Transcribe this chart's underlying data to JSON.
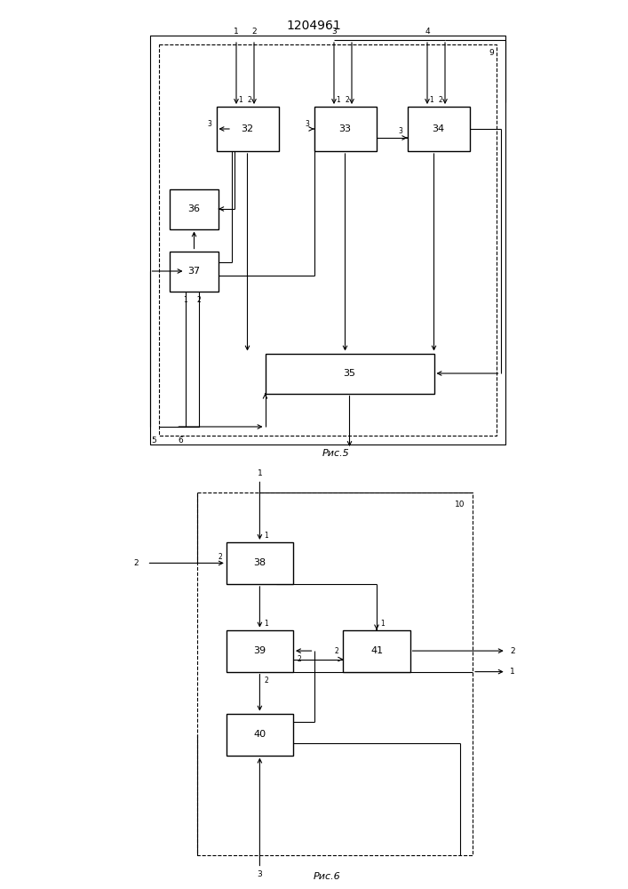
{
  "title": "1204961",
  "fig5_label": "Рис.5",
  "fig6_label": "Рис.6",
  "bg_color": "#ffffff"
}
